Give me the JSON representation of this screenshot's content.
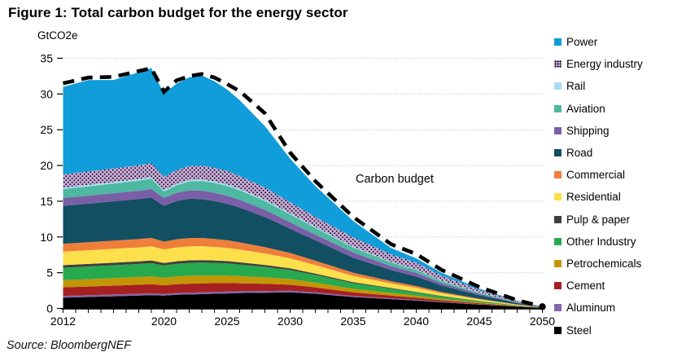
{
  "title": "Figure 1: Total carbon budget for the energy sector",
  "y_axis_unit": "GtCO2e",
  "source": "Source: BloombergNEF",
  "annotation": "Carbon budget",
  "chart_data": {
    "type": "area",
    "stacked": true,
    "title": "Total carbon budget for the energy sector",
    "ylabel": "GtCO2e",
    "xlabel": "",
    "ylim": [
      0,
      35
    ],
    "y_ticks": [
      0,
      5,
      10,
      15,
      20,
      25,
      30,
      35
    ],
    "x_tick_labels": [
      2012,
      2020,
      2025,
      2030,
      2035,
      2040,
      2045,
      2050
    ],
    "x_minor_tick_step": 1,
    "grid": "horizontal-dotted",
    "grid_color": "#c9c9c9",
    "legend_position": "right",
    "x": [
      2012,
      2014,
      2016,
      2018,
      2019,
      2020,
      2021,
      2022,
      2023,
      2024,
      2025,
      2026,
      2028,
      2030,
      2032,
      2035,
      2038,
      2040,
      2042,
      2045,
      2048,
      2050
    ],
    "series": [
      {
        "name": "Steel",
        "color": "#000000",
        "values": [
          1.5,
          1.6,
          1.7,
          1.8,
          1.85,
          1.8,
          1.9,
          1.95,
          2.0,
          2.05,
          2.1,
          2.15,
          2.2,
          2.25,
          2.05,
          1.6,
          1.3,
          1.1,
          0.85,
          0.55,
          0.25,
          0.08
        ]
      },
      {
        "name": "Aluminum",
        "color": "#8465a9",
        "values": [
          0.25,
          0.25,
          0.25,
          0.26,
          0.26,
          0.24,
          0.25,
          0.26,
          0.26,
          0.26,
          0.26,
          0.25,
          0.24,
          0.22,
          0.2,
          0.15,
          0.12,
          0.1,
          0.08,
          0.05,
          0.02,
          0.01
        ]
      },
      {
        "name": "Cement",
        "color": "#a62021",
        "values": [
          1.2,
          1.22,
          1.24,
          1.26,
          1.28,
          1.2,
          1.24,
          1.26,
          1.25,
          1.22,
          1.18,
          1.12,
          1.0,
          0.85,
          0.7,
          0.5,
          0.38,
          0.3,
          0.22,
          0.13,
          0.05,
          0.01
        ]
      },
      {
        "name": "Petrochemicals",
        "color": "#c39505",
        "values": [
          1.0,
          1.02,
          1.05,
          1.08,
          1.1,
          1.05,
          1.08,
          1.1,
          1.1,
          1.08,
          1.05,
          1.0,
          0.92,
          0.8,
          0.68,
          0.5,
          0.38,
          0.3,
          0.22,
          0.12,
          0.05,
          0.01
        ]
      },
      {
        "name": "Other Industry",
        "color": "#27a94e",
        "values": [
          1.75,
          1.78,
          1.8,
          1.82,
          1.85,
          1.72,
          1.78,
          1.8,
          1.8,
          1.76,
          1.7,
          1.62,
          1.45,
          1.25,
          1.05,
          0.78,
          0.58,
          0.45,
          0.33,
          0.18,
          0.07,
          0.02
        ]
      },
      {
        "name": "Pulp & paper",
        "color": "#3f3f3f",
        "values": [
          0.35,
          0.35,
          0.36,
          0.36,
          0.37,
          0.34,
          0.35,
          0.36,
          0.35,
          0.34,
          0.33,
          0.31,
          0.28,
          0.24,
          0.2,
          0.14,
          0.1,
          0.08,
          0.06,
          0.03,
          0.01,
          0.005
        ]
      },
      {
        "name": "Residential",
        "color": "#fbe04b",
        "values": [
          1.9,
          1.92,
          1.94,
          1.96,
          1.98,
          1.9,
          1.94,
          1.96,
          1.95,
          1.9,
          1.85,
          1.78,
          1.6,
          1.4,
          1.18,
          0.88,
          0.64,
          0.55,
          0.36,
          0.2,
          0.08,
          0.02
        ]
      },
      {
        "name": "Commercial",
        "color": "#f07e3b",
        "values": [
          1.1,
          1.12,
          1.14,
          1.16,
          1.18,
          1.1,
          1.14,
          1.16,
          1.15,
          1.12,
          1.08,
          1.02,
          0.9,
          0.75,
          0.62,
          0.45,
          0.32,
          0.25,
          0.18,
          0.1,
          0.04,
          0.01
        ]
      },
      {
        "name": "Road",
        "color": "#124f63",
        "values": [
          5.3,
          5.4,
          5.5,
          5.6,
          5.65,
          5.0,
          5.35,
          5.5,
          5.45,
          5.3,
          5.1,
          4.85,
          4.2,
          3.4,
          2.85,
          2.1,
          1.55,
          1.35,
          0.9,
          0.5,
          0.18,
          0.04
        ]
      },
      {
        "name": "Shipping",
        "color": "#7a5ea8",
        "values": [
          1.1,
          1.12,
          1.14,
          1.16,
          1.18,
          1.12,
          1.15,
          1.17,
          1.17,
          1.15,
          1.12,
          1.08,
          1.0,
          0.9,
          0.8,
          0.72,
          0.55,
          0.5,
          0.35,
          0.18,
          0.07,
          0.02
        ]
      },
      {
        "name": "Aviation",
        "color": "#4eb8a1",
        "values": [
          1.25,
          1.3,
          1.35,
          1.42,
          1.45,
          0.9,
          1.05,
          1.25,
          1.35,
          1.38,
          1.38,
          1.35,
          1.25,
          1.1,
          0.95,
          0.72,
          0.52,
          0.42,
          0.3,
          0.16,
          0.06,
          0.01
        ]
      },
      {
        "name": "Rail",
        "color": "#a8dcf0",
        "values": [
          0.2,
          0.2,
          0.2,
          0.21,
          0.21,
          0.19,
          0.2,
          0.21,
          0.21,
          0.2,
          0.2,
          0.19,
          0.18,
          0.16,
          0.14,
          0.1,
          0.08,
          0.06,
          0.05,
          0.03,
          0.01,
          0.005
        ]
      },
      {
        "name": "Energy industry",
        "color": "#c9aada",
        "pattern": "dots",
        "values": [
          1.85,
          1.88,
          1.9,
          1.95,
          1.97,
          1.85,
          1.92,
          1.95,
          1.95,
          1.92,
          1.88,
          1.82,
          1.7,
          1.55,
          1.4,
          1.3,
          1.05,
          0.95,
          0.7,
          0.38,
          0.15,
          0.03
        ]
      },
      {
        "name": "Power",
        "color": "#119dd9",
        "values": [
          12.25,
          12.8,
          12.4,
          13.0,
          13.3,
          11.6,
          12.1,
          12.4,
          12.6,
          12.1,
          11.4,
          10.6,
          8.6,
          6.1,
          4.3,
          2.3,
          0.9,
          0.6,
          0.4,
          0.15,
          0.05,
          0.02
        ]
      }
    ],
    "budget_line": {
      "label": "Carbon budget",
      "color": "#000000",
      "style": "dashed",
      "values": [
        31.5,
        32.3,
        32.4,
        33.2,
        33.6,
        30.3,
        31.9,
        32.5,
        32.8,
        32.3,
        31.4,
        30.4,
        27.3,
        21.8,
        17.8,
        12.8,
        9.0,
        7.6,
        5.4,
        3.0,
        1.15,
        0.25
      ]
    }
  }
}
